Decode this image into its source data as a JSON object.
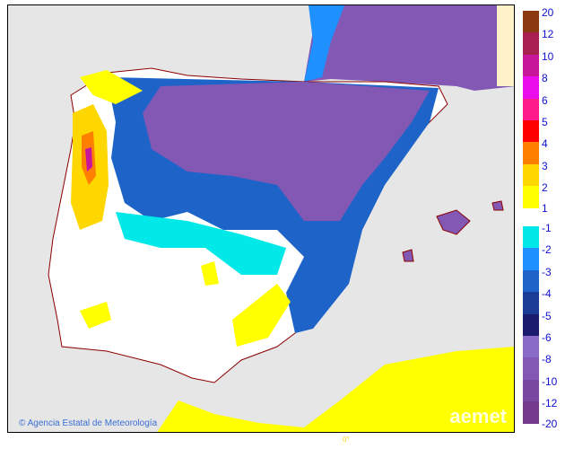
{
  "map": {
    "credit": "Agencia Estatal de Meteorología",
    "logo": "aemet",
    "longitude_label": "0°"
  },
  "legend": {
    "warm": [
      {
        "label": "20",
        "color": "#8b3a0f"
      },
      {
        "label": "12",
        "color": "#a8204f"
      },
      {
        "label": "10",
        "color": "#c8169a"
      },
      {
        "label": "8",
        "color": "#ea0cea"
      },
      {
        "label": "6",
        "color": "#ff1a8c"
      },
      {
        "label": "5",
        "color": "#ff0000"
      },
      {
        "label": "4",
        "color": "#ff8000"
      },
      {
        "label": "3",
        "color": "#ffd700"
      },
      {
        "label": "2",
        "color": "#ffff00"
      }
    ],
    "warm_last": "1",
    "cold": [
      {
        "label": "-1",
        "color": "#00e8e8"
      },
      {
        "label": "-2",
        "color": "#1e90ff"
      },
      {
        "label": "-3",
        "color": "#1e64c8"
      },
      {
        "label": "-4",
        "color": "#1a3c96"
      },
      {
        "label": "-5",
        "color": "#1a1a6e"
      },
      {
        "label": "-6",
        "color": "#8a6cc8"
      },
      {
        "label": "-8",
        "color": "#8258b4"
      },
      {
        "label": "-10",
        "color": "#7a48a0"
      },
      {
        "label": "-12",
        "color": "#743a8c"
      }
    ],
    "cold_last": "-20"
  }
}
